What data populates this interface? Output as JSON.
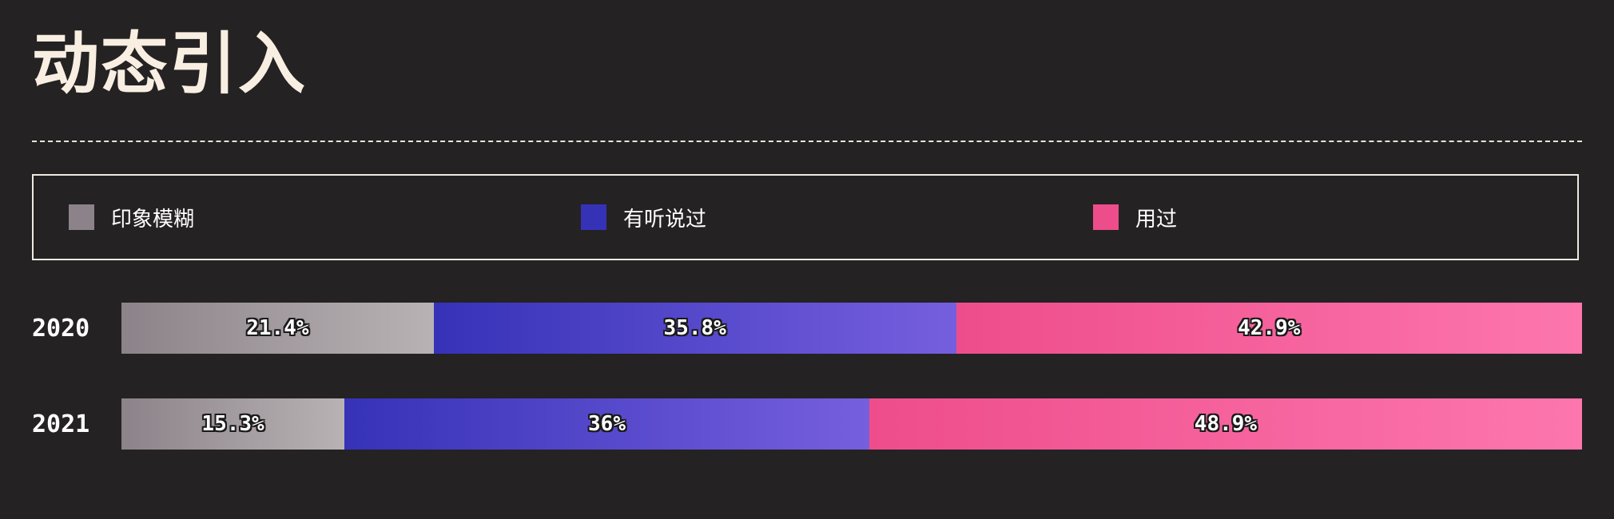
{
  "title": "动态引入",
  "chart_data": {
    "type": "bar",
    "orientation": "horizontal",
    "stacked": true,
    "percent": true,
    "title": "动态引入",
    "categories": [
      "2020",
      "2021"
    ],
    "series": [
      {
        "name": "印象模糊",
        "values": [
          21.4,
          15.3
        ],
        "labels": [
          "21.4%",
          "15.3%"
        ],
        "color": "#8b8389",
        "color_end": "#b9b2b4"
      },
      {
        "name": "有听说过",
        "values": [
          35.8,
          36
        ],
        "labels": [
          "35.8%",
          "36%"
        ],
        "color": "#3632b8",
        "color_end": "#765fde"
      },
      {
        "name": "用过",
        "values": [
          42.9,
          48.9
        ],
        "labels": [
          "42.9%",
          "48.9%"
        ],
        "color": "#ee4d8b",
        "color_end": "#fd76ae"
      }
    ],
    "legend_position": "top",
    "grid": false
  }
}
